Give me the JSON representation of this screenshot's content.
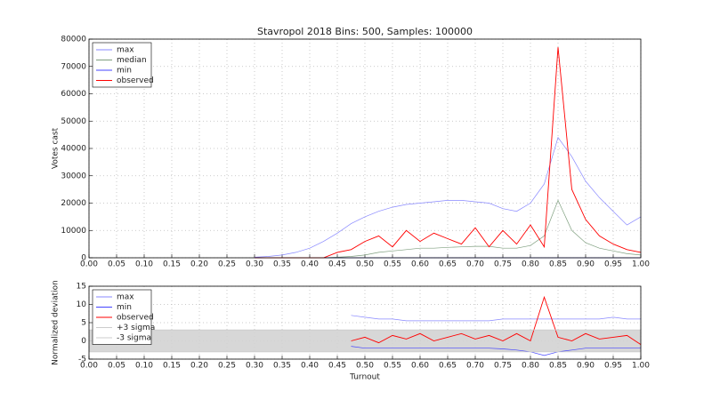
{
  "chart_data": [
    {
      "type": "line",
      "title": "Stavropol 2018 Bins: 500, Samples: 100000",
      "y_label": "Votes cast",
      "grid": true,
      "legend": "upper left",
      "x": [
        0.3,
        0.325,
        0.35,
        0.375,
        0.4,
        0.425,
        0.45,
        0.475,
        0.5,
        0.525,
        0.55,
        0.575,
        0.6,
        0.625,
        0.65,
        0.675,
        0.7,
        0.725,
        0.75,
        0.775,
        0.8,
        0.825,
        0.85,
        0.875,
        0.9,
        0.925,
        0.95,
        0.975,
        1.0
      ],
      "series": [
        {
          "name": "max",
          "color": "#8888ff",
          "values": [
            200,
            500,
            1000,
            2000,
            3500,
            6000,
            9000,
            12500,
            15000,
            17000,
            18500,
            19500,
            20000,
            20500,
            21000,
            21000,
            20500,
            20000,
            18000,
            17000,
            20000,
            27000,
            44000,
            37000,
            28000,
            22000,
            17000,
            12000,
            15000
          ]
        },
        {
          "name": "median",
          "color": "#7f9f7f",
          "values": [
            0,
            0,
            0,
            0,
            0,
            0,
            200,
            500,
            1000,
            2000,
            2500,
            3000,
            3500,
            3500,
            3800,
            4000,
            4200,
            4200,
            3500,
            3500,
            4500,
            8000,
            21000,
            10000,
            5500,
            3500,
            2500,
            1500,
            1000
          ]
        },
        {
          "name": "min",
          "color": "#4444ff",
          "values": [
            0,
            0,
            0,
            0,
            0,
            0,
            0,
            0,
            0,
            0,
            0,
            0,
            0,
            0,
            0,
            0,
            0,
            0,
            0,
            0,
            0,
            0,
            0,
            0,
            0,
            0,
            0,
            0,
            0
          ]
        },
        {
          "name": "observed",
          "color": "#ff0000",
          "values": [
            0,
            0,
            0,
            0,
            0,
            0,
            2000,
            3000,
            6000,
            8000,
            4000,
            10000,
            6000,
            9000,
            7000,
            5000,
            11000,
            4000,
            10000,
            5000,
            12000,
            4000,
            77000,
            25000,
            14000,
            8000,
            5000,
            3000,
            2000
          ]
        }
      ],
      "xlim": [
        0,
        1
      ],
      "ylim": [
        0,
        80000
      ],
      "xticks": [
        {
          "value": 0,
          "label": "0.00"
        },
        {
          "value": 0.05,
          "label": "0.05"
        },
        {
          "value": 0.1,
          "label": "0.10"
        },
        {
          "value": 0.15,
          "label": "0.15"
        },
        {
          "value": 0.2,
          "label": "0.20"
        },
        {
          "value": 0.25,
          "label": "0.25"
        },
        {
          "value": 0.3,
          "label": "0.30"
        },
        {
          "value": 0.35,
          "label": "0.35"
        },
        {
          "value": 0.4,
          "label": "0.40"
        },
        {
          "value": 0.45,
          "label": "0.45"
        },
        {
          "value": 0.5,
          "label": "0.50"
        },
        {
          "value": 0.55,
          "label": "0.55"
        },
        {
          "value": 0.6,
          "label": "0.60"
        },
        {
          "value": 0.65,
          "label": "0.65"
        },
        {
          "value": 0.7,
          "label": "0.70"
        },
        {
          "value": 0.75,
          "label": "0.75"
        },
        {
          "value": 0.8,
          "label": "0.80"
        },
        {
          "value": 0.85,
          "label": "0.85"
        },
        {
          "value": 0.9,
          "label": "0.90"
        },
        {
          "value": 0.95,
          "label": "0.95"
        },
        {
          "value": 1,
          "label": "1.00"
        }
      ],
      "yticks": [
        0,
        10000,
        20000,
        30000,
        40000,
        50000,
        60000,
        70000,
        80000
      ]
    },
    {
      "type": "line",
      "y_label": "Normalized deviation",
      "x_label": "Turnout",
      "grid": true,
      "legend": "upper left",
      "x": [
        0.3,
        0.325,
        0.35,
        0.375,
        0.4,
        0.425,
        0.45,
        0.475,
        0.5,
        0.525,
        0.55,
        0.575,
        0.6,
        0.625,
        0.65,
        0.675,
        0.7,
        0.725,
        0.75,
        0.775,
        0.8,
        0.825,
        0.85,
        0.875,
        0.9,
        0.925,
        0.95,
        0.975,
        1.0
      ],
      "series": [
        {
          "name": "max",
          "color": "#8888ff",
          "values": [
            null,
            null,
            null,
            null,
            null,
            null,
            null,
            7,
            6.5,
            6,
            6,
            5.5,
            5.5,
            5.5,
            5.5,
            5.5,
            5.5,
            5.5,
            6,
            6,
            6,
            6,
            6,
            6,
            6,
            6,
            6.5,
            6,
            6
          ]
        },
        {
          "name": "min",
          "color": "#4444ff",
          "values": [
            null,
            null,
            null,
            null,
            null,
            null,
            null,
            -1.5,
            -2,
            -2,
            -2,
            -2,
            -2,
            -2,
            -2,
            -2,
            -2,
            -2,
            -2.2,
            -2.5,
            -3,
            -4,
            -3,
            -2.5,
            -2,
            -2,
            -2,
            -2,
            -2
          ]
        },
        {
          "name": "observed",
          "color": "#ff0000",
          "values": [
            null,
            null,
            null,
            null,
            null,
            null,
            null,
            0,
            1,
            -0.5,
            1.5,
            0.5,
            2,
            0,
            1,
            2,
            0.5,
            1.5,
            0,
            2,
            0,
            12,
            1,
            0,
            2,
            0.5,
            1,
            1.5,
            -1
          ]
        },
        {
          "name": "+3 sigma",
          "color": "#cccccc",
          "value": 3
        },
        {
          "name": "-3 sigma",
          "color": "#cccccc",
          "value": -3
        }
      ],
      "xlim": [
        0,
        1
      ],
      "ylim": [
        -5,
        15
      ],
      "xticks": [
        {
          "value": 0,
          "label": "0.00"
        },
        {
          "value": 0.05,
          "label": "0.05"
        },
        {
          "value": 0.1,
          "label": "0.10"
        },
        {
          "value": 0.15,
          "label": "0.15"
        },
        {
          "value": 0.2,
          "label": "0.20"
        },
        {
          "value": 0.25,
          "label": "0.25"
        },
        {
          "value": 0.3,
          "label": "0.30"
        },
        {
          "value": 0.35,
          "label": "0.35"
        },
        {
          "value": 0.4,
          "label": "0.40"
        },
        {
          "value": 0.45,
          "label": "0.45"
        },
        {
          "value": 0.5,
          "label": "0.50"
        },
        {
          "value": 0.55,
          "label": "0.55"
        },
        {
          "value": 0.6,
          "label": "0.60"
        },
        {
          "value": 0.65,
          "label": "0.65"
        },
        {
          "value": 0.7,
          "label": "0.70"
        },
        {
          "value": 0.75,
          "label": "0.75"
        },
        {
          "value": 0.8,
          "label": "0.80"
        },
        {
          "value": 0.85,
          "label": "0.85"
        },
        {
          "value": 0.9,
          "label": "0.90"
        },
        {
          "value": 0.95,
          "label": "0.95"
        },
        {
          "value": 1,
          "label": "1.00"
        }
      ],
      "yticks": [
        -5,
        0,
        5,
        10,
        15
      ]
    }
  ]
}
